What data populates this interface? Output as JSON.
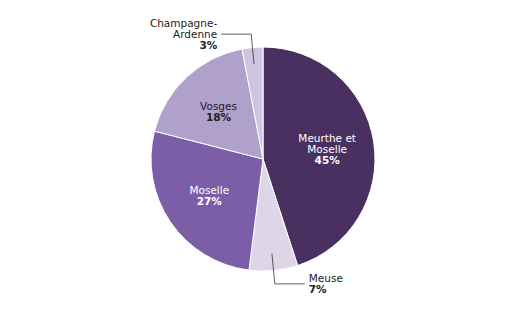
{
  "chart_data": {
    "type": "pie",
    "categories": [
      "Meurthe et\nMoselle",
      "Meuse",
      "Moselle",
      "Vosges",
      "Champagne-\nArdenne"
    ],
    "values": [
      45,
      7,
      27,
      18,
      3
    ],
    "value_labels": [
      "45%",
      "7%",
      "27%",
      "18%",
      "3%"
    ],
    "colors": [
      "#4a3060",
      "#ddd5e8",
      "#7b5ea7",
      "#b0a0cc",
      "#d0c5e0"
    ],
    "data_labels": true
  }
}
